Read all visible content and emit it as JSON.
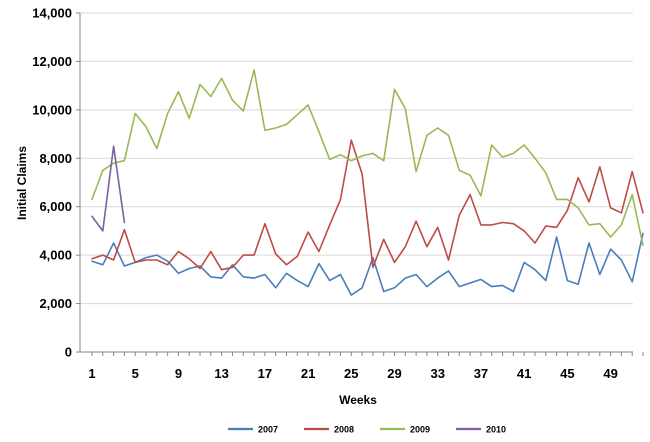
{
  "chart_data": {
    "type": "line",
    "title": "",
    "xlabel": "Weeks",
    "ylabel": "Initial Claims",
    "xlim": [
      1,
      52
    ],
    "ylim": [
      0,
      14000
    ],
    "grid": true,
    "legend_position": "bottom",
    "x_ticks": [
      1,
      5,
      9,
      13,
      17,
      21,
      25,
      29,
      33,
      37,
      41,
      45,
      49
    ],
    "x_tick_labels": [
      "1",
      "5",
      "9",
      "13",
      "17",
      "21",
      "25",
      "29",
      "33",
      "37",
      "41",
      "45",
      "49"
    ],
    "y_ticks": [
      0,
      2000,
      4000,
      6000,
      8000,
      10000,
      12000,
      14000
    ],
    "y_tick_labels": [
      "0",
      "2,000",
      "4,000",
      "6,000",
      "8,000",
      "10,000",
      "12,000",
      "14,000"
    ],
    "series": [
      {
        "name": "2007",
        "color": "#4a7ebb",
        "x": [
          1,
          2,
          3,
          4,
          5,
          6,
          7,
          8,
          9,
          10,
          11,
          12,
          13,
          14,
          15,
          16,
          17,
          18,
          19,
          20,
          21,
          22,
          23,
          24,
          25,
          26,
          27,
          28,
          29,
          30,
          31,
          32,
          33,
          34,
          35,
          36,
          37,
          38,
          39,
          40,
          41,
          42,
          43,
          44,
          45,
          46,
          47,
          48,
          49,
          50,
          51,
          52
        ],
        "values": [
          3750,
          3600,
          4500,
          3550,
          3700,
          3900,
          4000,
          3750,
          3250,
          3450,
          3550,
          3100,
          3050,
          3600,
          3100,
          3050,
          3200,
          2650,
          3250,
          2950,
          2700,
          3650,
          2950,
          3200,
          2350,
          2650,
          3900,
          2500,
          2650,
          3050,
          3200,
          2700,
          3050,
          3350,
          2700,
          2850,
          3000,
          2700,
          2750,
          2500,
          3700,
          3400,
          2950,
          4750,
          2950,
          2800,
          4500,
          3200,
          4250,
          3800,
          2900,
          4900
        ]
      },
      {
        "name": "2008",
        "color": "#be4b48",
        "x": [
          1,
          2,
          3,
          4,
          5,
          6,
          7,
          8,
          9,
          10,
          11,
          12,
          13,
          14,
          15,
          16,
          17,
          18,
          19,
          20,
          21,
          22,
          23,
          24,
          25,
          26,
          27,
          28,
          29,
          30,
          31,
          32,
          33,
          34,
          35,
          36,
          37,
          38,
          39,
          40,
          41,
          42,
          43,
          44,
          45,
          46,
          47,
          48,
          49,
          50,
          51,
          52
        ],
        "values": [
          3850,
          4000,
          3800,
          5050,
          3700,
          3800,
          3800,
          3600,
          4150,
          3850,
          3450,
          4150,
          3400,
          3500,
          4000,
          4000,
          5300,
          4050,
          3600,
          3950,
          4950,
          4150,
          5250,
          6300,
          8750,
          7350,
          3500,
          4650,
          3700,
          4350,
          5400,
          4350,
          5150,
          3800,
          5650,
          6500,
          5250,
          5250,
          5350,
          5300,
          5000,
          4500,
          5200,
          5150,
          5850,
          7200,
          6200,
          7650,
          5950,
          5750,
          7450,
          5750
        ]
      },
      {
        "name": "2009",
        "color": "#98b954",
        "x": [
          1,
          2,
          3,
          4,
          5,
          6,
          7,
          8,
          9,
          10,
          11,
          12,
          13,
          14,
          15,
          16,
          17,
          18,
          19,
          20,
          21,
          22,
          23,
          24,
          25,
          26,
          27,
          28,
          29,
          30,
          31,
          32,
          33,
          34,
          35,
          36,
          37,
          38,
          39,
          40,
          41,
          42,
          43,
          44,
          45,
          46,
          47,
          48,
          49,
          50,
          51,
          52
        ],
        "values": [
          6300,
          7500,
          7800,
          7900,
          9850,
          9300,
          8400,
          9850,
          10750,
          9650,
          11050,
          10550,
          11300,
          10400,
          9950,
          11650,
          9150,
          9250,
          9400,
          9800,
          10200,
          9100,
          7950,
          8150,
          7900,
          8100,
          8200,
          7900,
          10850,
          10050,
          7450,
          8950,
          9250,
          8950,
          7500,
          7300,
          6450,
          8550,
          8050,
          8200,
          8550,
          8000,
          7400,
          6300,
          6300,
          5950,
          5250,
          5300,
          4750,
          5250,
          6500,
          4400
        ]
      },
      {
        "name": "2010",
        "color": "#7d60a0",
        "x": [
          1,
          2,
          3,
          4
        ],
        "values": [
          5600,
          5000,
          8500,
          5350
        ]
      }
    ]
  }
}
